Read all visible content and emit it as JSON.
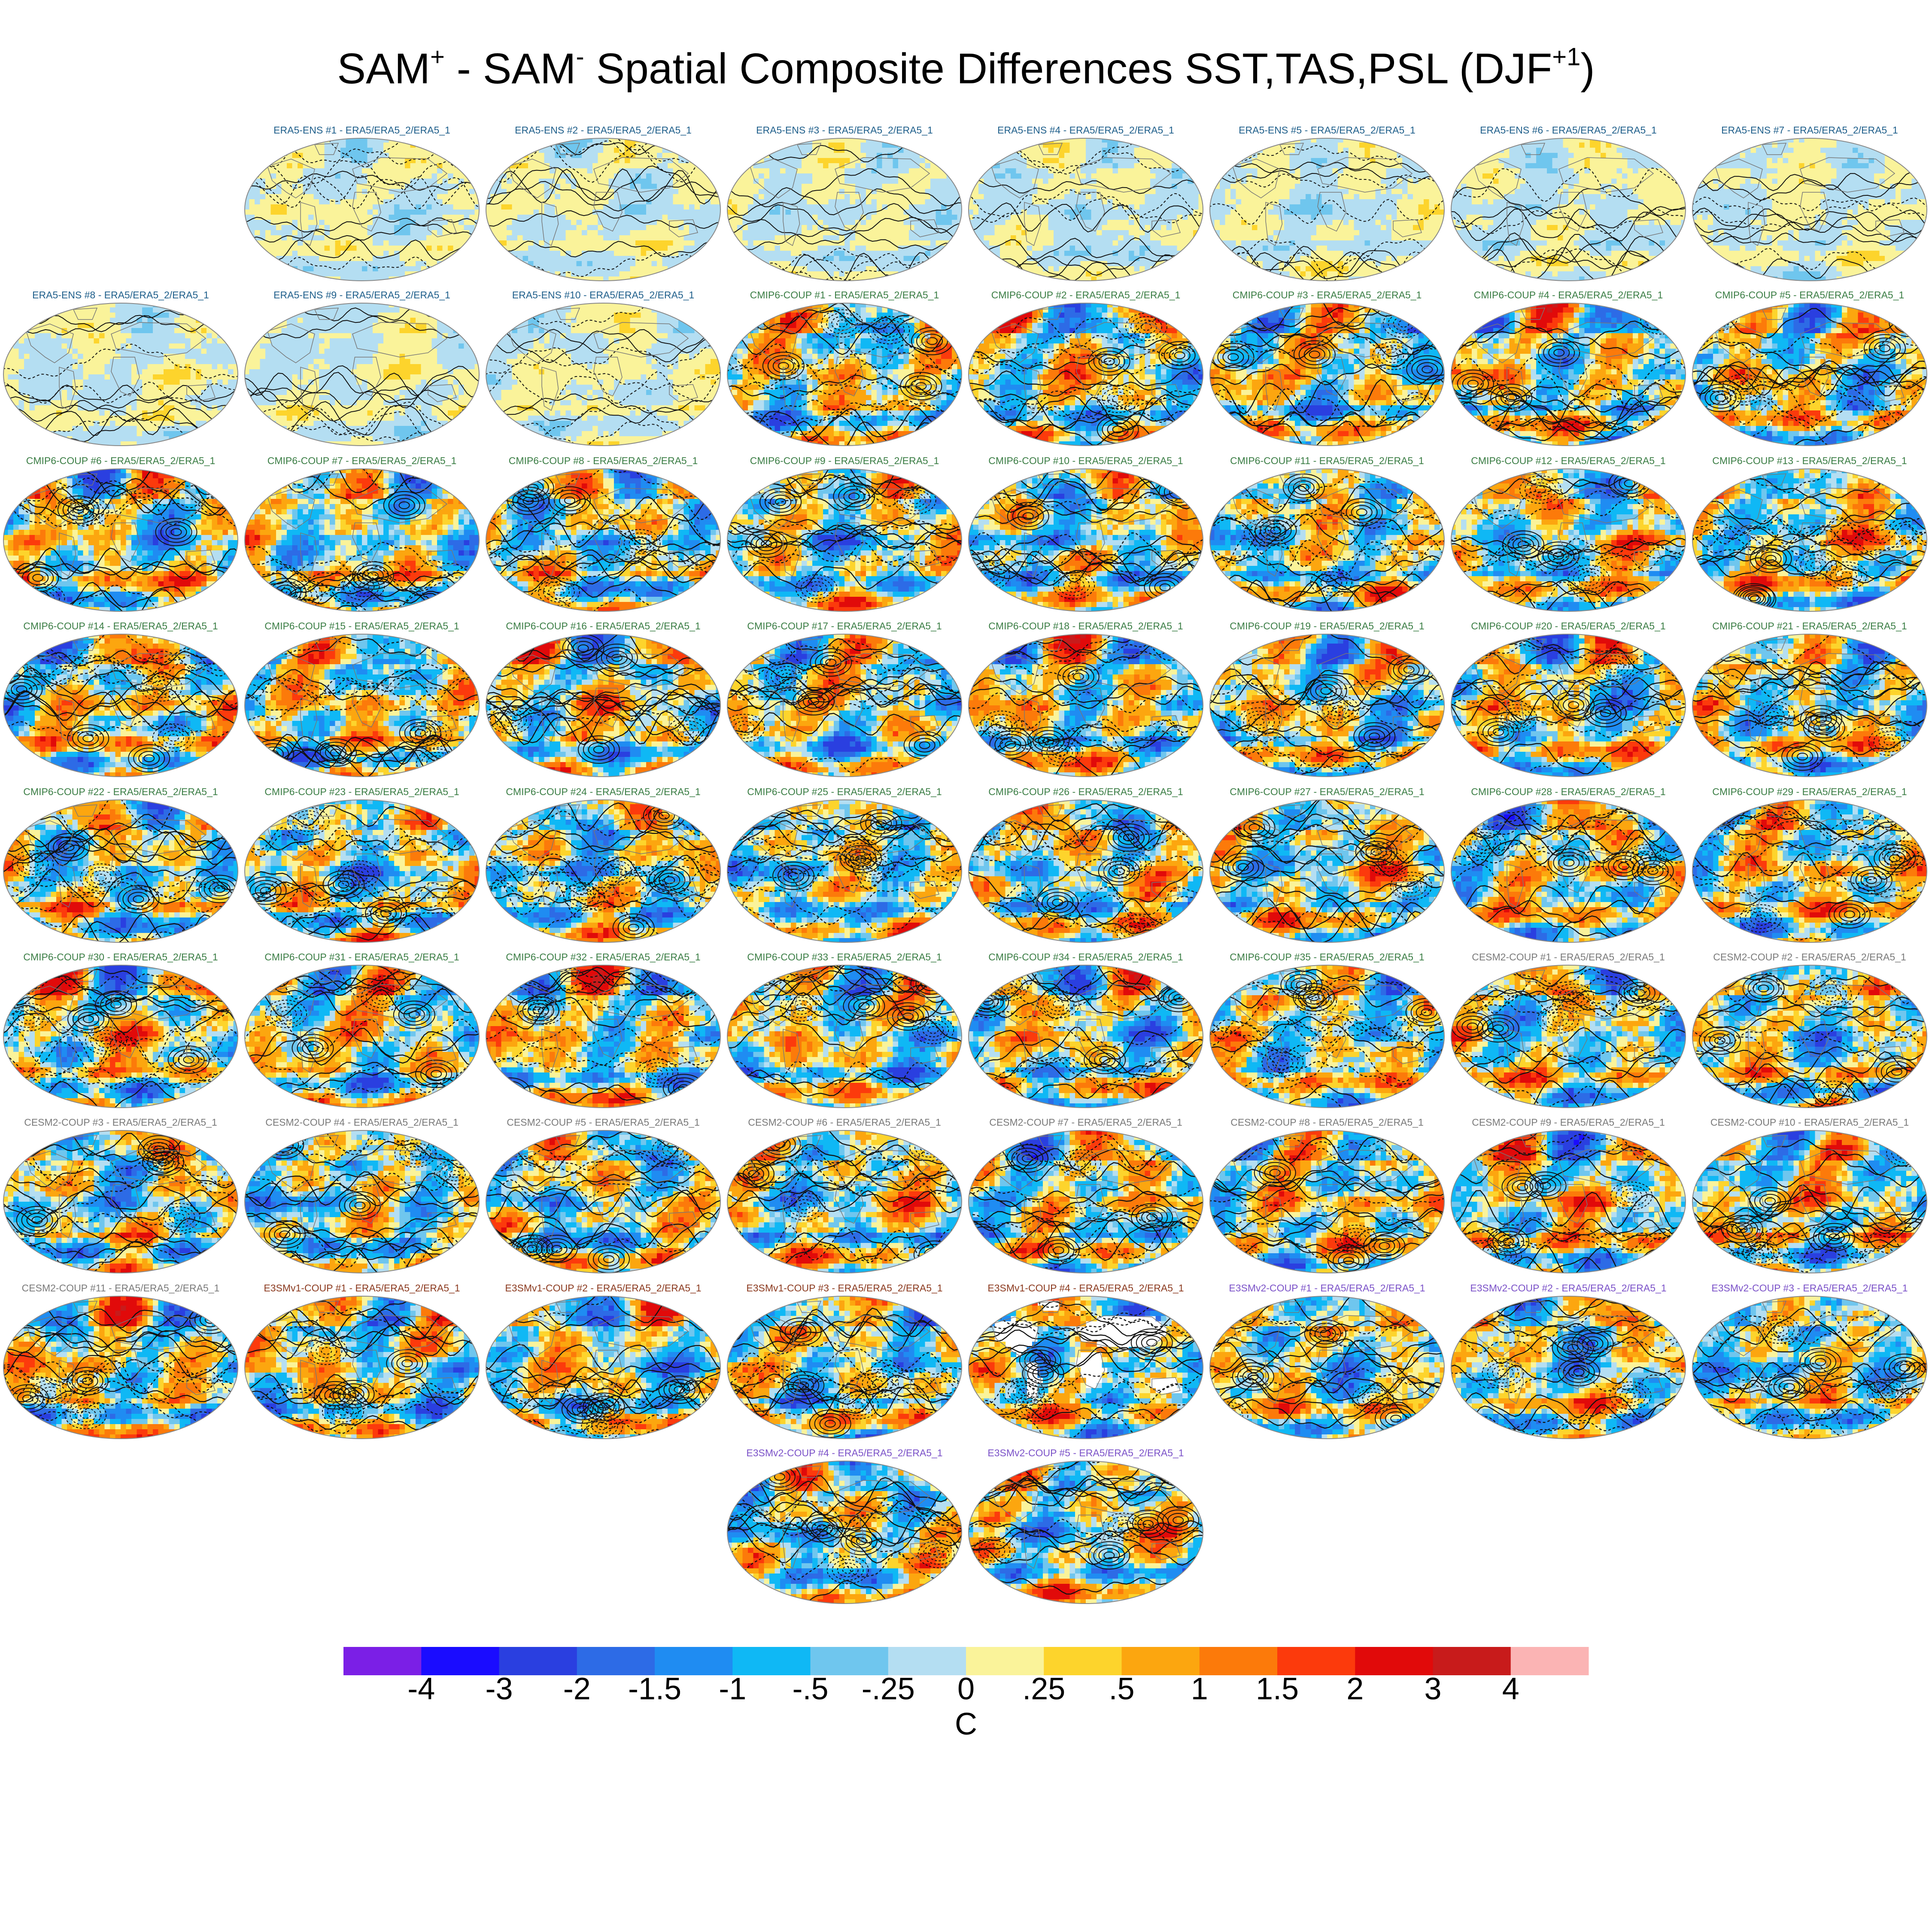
{
  "title": {
    "part1": "SAM",
    "sup1": "+",
    "part2": " - SAM",
    "sup2": "-",
    "part3": " Spatial Composite Differences SST,TAS,PSL (DJF",
    "sup3": "+1",
    "part4": ")"
  },
  "colors": {
    "ERA5-ENS": "#1f5f8b",
    "CMIP6-COUP": "#3a7d44",
    "CESM2-COUP": "#7a7a7a",
    "E3SMv1-COUP": "#8b3a1f",
    "E3SMv2-COUP": "#7b52c8"
  },
  "panels": [
    {
      "group": "ERA5-ENS",
      "label": "ERA5-ENS    #1 - ERA5/ERA5_2/ERA5_1",
      "amp": 0.15
    },
    {
      "group": "ERA5-ENS",
      "label": "ERA5-ENS    #2 - ERA5/ERA5_2/ERA5_1",
      "amp": 0.15
    },
    {
      "group": "ERA5-ENS",
      "label": "ERA5-ENS    #3 - ERA5/ERA5_2/ERA5_1",
      "amp": 0.15
    },
    {
      "group": "ERA5-ENS",
      "label": "ERA5-ENS    #4 - ERA5/ERA5_2/ERA5_1",
      "amp": 0.15
    },
    {
      "group": "ERA5-ENS",
      "label": "ERA5-ENS    #5 - ERA5/ERA5_2/ERA5_1",
      "amp": 0.15
    },
    {
      "group": "ERA5-ENS",
      "label": "ERA5-ENS    #6 - ERA5/ERA5_2/ERA5_1",
      "amp": 0.15
    },
    {
      "group": "ERA5-ENS",
      "label": "ERA5-ENS    #7 - ERA5/ERA5_2/ERA5_1",
      "amp": 0.15
    },
    {
      "group": "ERA5-ENS",
      "label": "ERA5-ENS    #8 - ERA5/ERA5_2/ERA5_1",
      "amp": 0.15
    },
    {
      "group": "ERA5-ENS",
      "label": "ERA5-ENS    #9 - ERA5/ERA5_2/ERA5_1",
      "amp": 0.15
    },
    {
      "group": "ERA5-ENS",
      "label": "ERA5-ENS    #10 - ERA5/ERA5_2/ERA5_1",
      "amp": 0.15
    },
    {
      "group": "CMIP6-COUP",
      "label": "CMIP6-COUP  #1 - ERA5/ERA5_2/ERA5_1",
      "amp": 1.0
    },
    {
      "group": "CMIP6-COUP",
      "label": "CMIP6-COUP  #2 - ERA5/ERA5_2/ERA5_1",
      "amp": 1.0
    },
    {
      "group": "CMIP6-COUP",
      "label": "CMIP6-COUP  #3 - ERA5/ERA5_2/ERA5_1",
      "amp": 1.0
    },
    {
      "group": "CMIP6-COUP",
      "label": "CMIP6-COUP  #4 - ERA5/ERA5_2/ERA5_1",
      "amp": 1.0
    },
    {
      "group": "CMIP6-COUP",
      "label": "CMIP6-COUP  #5 - ERA5/ERA5_2/ERA5_1",
      "amp": 1.0
    },
    {
      "group": "CMIP6-COUP",
      "label": "CMIP6-COUP  #6 - ERA5/ERA5_2/ERA5_1",
      "amp": 1.0
    },
    {
      "group": "CMIP6-COUP",
      "label": "CMIP6-COUP  #7 - ERA5/ERA5_2/ERA5_1",
      "amp": 1.0
    },
    {
      "group": "CMIP6-COUP",
      "label": "CMIP6-COUP  #8 - ERA5/ERA5_2/ERA5_1",
      "amp": 1.0
    },
    {
      "group": "CMIP6-COUP",
      "label": "CMIP6-COUP  #9 - ERA5/ERA5_2/ERA5_1",
      "amp": 1.0
    },
    {
      "group": "CMIP6-COUP",
      "label": "CMIP6-COUP  #10 - ERA5/ERA5_2/ERA5_1",
      "amp": 1.0
    },
    {
      "group": "CMIP6-COUP",
      "label": "CMIP6-COUP  #11 - ERA5/ERA5_2/ERA5_1",
      "amp": 1.0
    },
    {
      "group": "CMIP6-COUP",
      "label": "CMIP6-COUP  #12 - ERA5/ERA5_2/ERA5_1",
      "amp": 1.0
    },
    {
      "group": "CMIP6-COUP",
      "label": "CMIP6-COUP  #13 - ERA5/ERA5_2/ERA5_1",
      "amp": 1.0
    },
    {
      "group": "CMIP6-COUP",
      "label": "CMIP6-COUP  #14 - ERA5/ERA5_2/ERA5_1",
      "amp": 1.0
    },
    {
      "group": "CMIP6-COUP",
      "label": "CMIP6-COUP  #15 - ERA5/ERA5_2/ERA5_1",
      "amp": 1.0
    },
    {
      "group": "CMIP6-COUP",
      "label": "CMIP6-COUP  #16 - ERA5/ERA5_2/ERA5_1",
      "amp": 1.0
    },
    {
      "group": "CMIP6-COUP",
      "label": "CMIP6-COUP  #17 - ERA5/ERA5_2/ERA5_1",
      "amp": 1.0
    },
    {
      "group": "CMIP6-COUP",
      "label": "CMIP6-COUP  #18 - ERA5/ERA5_2/ERA5_1",
      "amp": 1.0
    },
    {
      "group": "CMIP6-COUP",
      "label": "CMIP6-COUP  #19 - ERA5/ERA5_2/ERA5_1",
      "amp": 1.0
    },
    {
      "group": "CMIP6-COUP",
      "label": "CMIP6-COUP  #20 - ERA5/ERA5_2/ERA5_1",
      "amp": 1.0
    },
    {
      "group": "CMIP6-COUP",
      "label": "CMIP6-COUP  #21 - ERA5/ERA5_2/ERA5_1",
      "amp": 1.0
    },
    {
      "group": "CMIP6-COUP",
      "label": "CMIP6-COUP  #22 - ERA5/ERA5_2/ERA5_1",
      "amp": 1.0
    },
    {
      "group": "CMIP6-COUP",
      "label": "CMIP6-COUP  #23 - ERA5/ERA5_2/ERA5_1",
      "amp": 1.0
    },
    {
      "group": "CMIP6-COUP",
      "label": "CMIP6-COUP  #24 - ERA5/ERA5_2/ERA5_1",
      "amp": 1.0
    },
    {
      "group": "CMIP6-COUP",
      "label": "CMIP6-COUP  #25 - ERA5/ERA5_2/ERA5_1",
      "amp": 1.0
    },
    {
      "group": "CMIP6-COUP",
      "label": "CMIP6-COUP  #26 - ERA5/ERA5_2/ERA5_1",
      "amp": 1.0
    },
    {
      "group": "CMIP6-COUP",
      "label": "CMIP6-COUP  #27 - ERA5/ERA5_2/ERA5_1",
      "amp": 1.0
    },
    {
      "group": "CMIP6-COUP",
      "label": "CMIP6-COUP  #28 - ERA5/ERA5_2/ERA5_1",
      "amp": 1.0
    },
    {
      "group": "CMIP6-COUP",
      "label": "CMIP6-COUP  #29 - ERA5/ERA5_2/ERA5_1",
      "amp": 1.0
    },
    {
      "group": "CMIP6-COUP",
      "label": "CMIP6-COUP  #30 - ERA5/ERA5_2/ERA5_1",
      "amp": 1.0
    },
    {
      "group": "CMIP6-COUP",
      "label": "CMIP6-COUP  #31 - ERA5/ERA5_2/ERA5_1",
      "amp": 1.0
    },
    {
      "group": "CMIP6-COUP",
      "label": "CMIP6-COUP  #32 - ERA5/ERA5_2/ERA5_1",
      "amp": 1.0
    },
    {
      "group": "CMIP6-COUP",
      "label": "CMIP6-COUP  #33 - ERA5/ERA5_2/ERA5_1",
      "amp": 1.0
    },
    {
      "group": "CMIP6-COUP",
      "label": "CMIP6-COUP  #34 - ERA5/ERA5_2/ERA5_1",
      "amp": 1.0
    },
    {
      "group": "CMIP6-COUP",
      "label": "CMIP6-COUP  #35 - ERA5/ERA5_2/ERA5_1",
      "amp": 1.0
    },
    {
      "group": "CESM2-COUP",
      "label": "CESM2-COUP  #1 - ERA5/ERA5_2/ERA5_1",
      "amp": 1.0
    },
    {
      "group": "CESM2-COUP",
      "label": "CESM2-COUP  #2 - ERA5/ERA5_2/ERA5_1",
      "amp": 1.0
    },
    {
      "group": "CESM2-COUP",
      "label": "CESM2-COUP  #3 - ERA5/ERA5_2/ERA5_1",
      "amp": 1.0
    },
    {
      "group": "CESM2-COUP",
      "label": "CESM2-COUP  #4 - ERA5/ERA5_2/ERA5_1",
      "amp": 1.0
    },
    {
      "group": "CESM2-COUP",
      "label": "CESM2-COUP  #5 - ERA5/ERA5_2/ERA5_1",
      "amp": 1.0
    },
    {
      "group": "CESM2-COUP",
      "label": "CESM2-COUP  #6 - ERA5/ERA5_2/ERA5_1",
      "amp": 1.0
    },
    {
      "group": "CESM2-COUP",
      "label": "CESM2-COUP  #7 - ERA5/ERA5_2/ERA5_1",
      "amp": 1.0
    },
    {
      "group": "CESM2-COUP",
      "label": "CESM2-COUP  #8 - ERA5/ERA5_2/ERA5_1",
      "amp": 1.0
    },
    {
      "group": "CESM2-COUP",
      "label": "CESM2-COUP  #9 - ERA5/ERA5_2/ERA5_1",
      "amp": 1.0
    },
    {
      "group": "CESM2-COUP",
      "label": "CESM2-COUP  #10 - ERA5/ERA5_2/ERA5_1",
      "amp": 1.0
    },
    {
      "group": "CESM2-COUP",
      "label": "CESM2-COUP  #11 - ERA5/ERA5_2/ERA5_1",
      "amp": 1.0
    },
    {
      "group": "E3SMv1-COUP",
      "label": "E3SMv1-COUP  #1 - ERA5/ERA5_2/ERA5_1",
      "amp": 1.0
    },
    {
      "group": "E3SMv1-COUP",
      "label": "E3SMv1-COUP  #2 - ERA5/ERA5_2/ERA5_1",
      "amp": 1.0
    },
    {
      "group": "E3SMv1-COUP",
      "label": "E3SMv1-COUP  #3 - ERA5/ERA5_2/ERA5_1",
      "amp": 1.0
    },
    {
      "group": "E3SMv1-COUP",
      "label": "E3SMv1-COUP  #4 - ERA5/ERA5_2/ERA5_1",
      "amp": 1.0,
      "ocean_only": true
    },
    {
      "group": "E3SMv2-COUP",
      "label": "E3SMv2-COUP  #1 - ERA5/ERA5_2/ERA5_1",
      "amp": 1.0
    },
    {
      "group": "E3SMv2-COUP",
      "label": "E3SMv2-COUP  #2 - ERA5/ERA5_2/ERA5_1",
      "amp": 1.0
    },
    {
      "group": "E3SMv2-COUP",
      "label": "E3SMv2-COUP  #3 - ERA5/ERA5_2/ERA5_1",
      "amp": 1.0
    },
    {
      "group": "E3SMv2-COUP",
      "label": "E3SMv2-COUP  #4 - ERA5/ERA5_2/ERA5_1",
      "amp": 1.0
    },
    {
      "group": "E3SMv2-COUP",
      "label": "E3SMv2-COUP  #5 - ERA5/ERA5_2/ERA5_1",
      "amp": 1.0
    }
  ],
  "colorbar": {
    "colors": [
      "#7b1fe6",
      "#1a0cff",
      "#2a3fe0",
      "#2d6be6",
      "#1f8cf2",
      "#0fb8f5",
      "#6fc6ee",
      "#b4def2",
      "#faf39a",
      "#fdd42c",
      "#fca60f",
      "#fc7a0a",
      "#fc3a0c",
      "#e10a0a",
      "#c81b1b",
      "#fbb4b4"
    ],
    "tick_labels": [
      "-4",
      "-3",
      "-2",
      "-1.5",
      "-1",
      "-.5",
      "-.25",
      "0",
      ".25",
      ".5",
      "1",
      "1.5",
      "2",
      "3",
      "4"
    ],
    "levels": [
      -4,
      -3,
      -2,
      -1.5,
      -1,
      -0.5,
      -0.25,
      0,
      0.25,
      0.5,
      1,
      1.5,
      2,
      3,
      4
    ],
    "units": "C"
  }
}
